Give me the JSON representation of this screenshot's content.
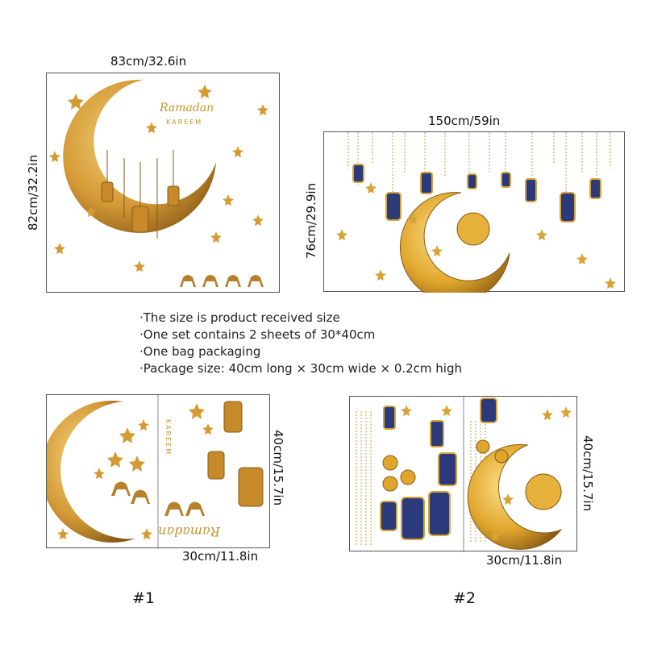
{
  "product": {
    "dimensions": {
      "set1_width": "83cm/32.6in",
      "set1_height": "82cm/32.2in",
      "set2_width": "150cm/59in",
      "set2_height": "76cm/29.9in",
      "sheet1_width": "30cm/11.8in",
      "sheet1_height": "40cm/15.7in",
      "sheet2_width": "30cm/11.8in",
      "sheet2_height": "40cm/15.7in"
    },
    "greeting": {
      "script": "Ramadan",
      "caps": "KAREEM"
    },
    "notes": [
      "·The size is product received size",
      "·One set contains 2 sheets of 30*40cm",
      "·One bag packaging",
      "·Package size: 40cm long × 30cm wide × 0.2cm high"
    ],
    "labels": {
      "set1": "#1",
      "set2": "#2"
    },
    "colors": {
      "gold": "#d9a437",
      "dark_gold": "#a8701c",
      "lantern_blue": "#2a3a7a"
    }
  }
}
